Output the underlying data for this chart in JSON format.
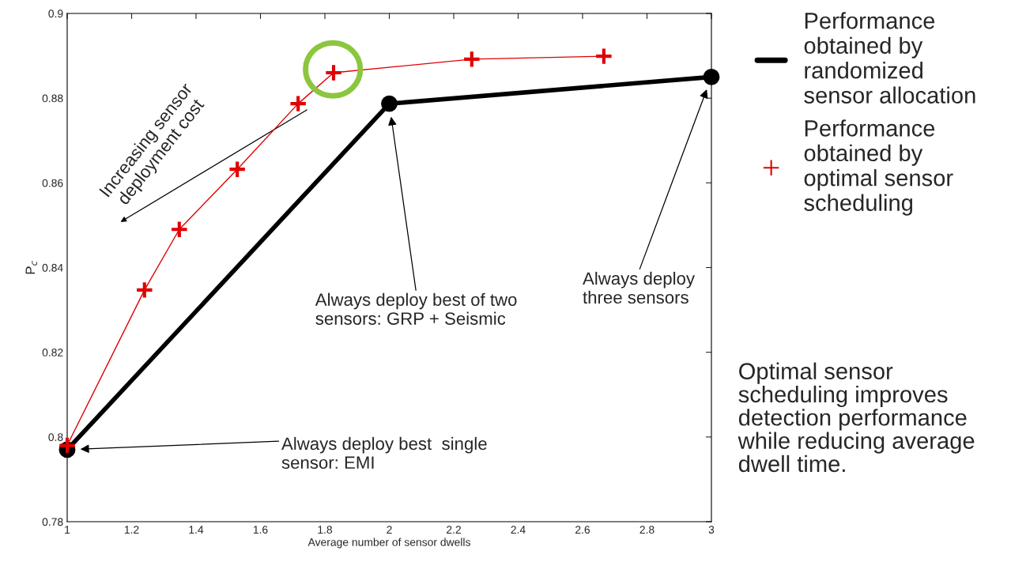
{
  "chart_data": {
    "type": "line",
    "xlabel": "Average number of sensor dwells",
    "ylabel": "P$_{c}$",
    "xlim": [
      1,
      3
    ],
    "xticks": [
      1,
      1.2,
      1.4,
      1.6,
      1.8,
      2,
      2.2,
      2.4,
      2.6,
      2.8,
      3
    ],
    "ylim": [
      0.78,
      0.9
    ],
    "yticks": [
      0.78,
      0.8,
      0.82,
      0.84,
      0.86,
      0.88,
      0.9
    ],
    "grid": false,
    "legend": "right",
    "series": [
      {
        "name": "Performance\nobtained by\nrandomized\nsensor allocation",
        "color": "#000000",
        "marker": "circle",
        "x": [
          1,
          2,
          3
        ],
        "values": [
          0.797,
          0.8787,
          0.885
        ]
      },
      {
        "name": "Performance\nobtained by\noptimal sensor\nscheduling",
        "color": "#e00000",
        "marker": "cross",
        "x": [
          1,
          1.24,
          1.348,
          1.528,
          1.717,
          1.827,
          2.256,
          2.666
        ],
        "values": [
          0.798,
          0.8347,
          0.849,
          0.8632,
          0.8787,
          0.886,
          0.8892,
          0.8899
        ]
      }
    ],
    "annotations": [
      "Increasing sensor\ndeployment cost",
      "Always deploy best  single\nsensor: EMI",
      "Always deploy best of two\nsensors: GRP + Seismic",
      "Always deploy\nthree sensors",
      "Optimal sensor\nscheduling improves\ndetection performance\nwhile reducing average\ndwell time."
    ]
  }
}
